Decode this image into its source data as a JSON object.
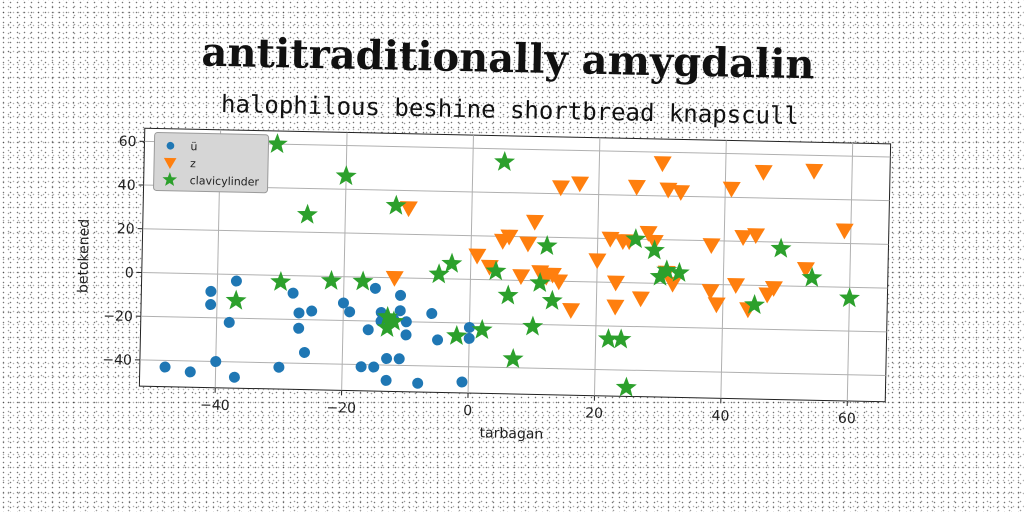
{
  "chart_data": {
    "type": "scatter",
    "title": "antitraditionally amygdalin",
    "subtitle": "halophilous beshine shortbread knapscull",
    "xlabel": "tarbagan",
    "ylabel": "betokened",
    "xlim": [
      -52,
      66
    ],
    "ylim": [
      -52,
      66
    ],
    "xticks": [
      -40,
      -20,
      0,
      20,
      40,
      60
    ],
    "yticks": [
      -40,
      -20,
      0,
      20,
      40,
      60
    ],
    "xtick_labels": [
      "−40",
      "−20",
      "0",
      "20",
      "40",
      "60"
    ],
    "ytick_labels": [
      "−40",
      "−20",
      "0",
      "20",
      "40",
      "60"
    ],
    "grid": true,
    "legend_position": "top-left",
    "series": [
      {
        "name": "ü",
        "marker": "circle",
        "color": "#1f77b4",
        "points": [
          [
            -48,
            -43
          ],
          [
            -44,
            -45
          ],
          [
            -41,
            -8
          ],
          [
            -41,
            -14
          ],
          [
            -40,
            -40
          ],
          [
            -38,
            -22
          ],
          [
            -37,
            -3
          ],
          [
            -37,
            -47
          ],
          [
            -30,
            -42
          ],
          [
            -28,
            -8
          ],
          [
            -27,
            -24
          ],
          [
            -27,
            -17
          ],
          [
            -26,
            -35
          ],
          [
            -25,
            -16
          ],
          [
            -20,
            -12
          ],
          [
            -19,
            -16
          ],
          [
            -17,
            -41
          ],
          [
            -16,
            -24
          ],
          [
            -15,
            -5
          ],
          [
            -15,
            -41
          ],
          [
            -14,
            -20
          ],
          [
            -14,
            -16
          ],
          [
            -13,
            -37
          ],
          [
            -13,
            -47
          ],
          [
            -12,
            -19
          ],
          [
            -11,
            -37
          ],
          [
            -11,
            -8
          ],
          [
            -10,
            -20
          ],
          [
            -10,
            -26
          ],
          [
            -11,
            -15
          ],
          [
            -8,
            -48
          ],
          [
            -6,
            -16
          ],
          [
            -5,
            -28
          ],
          [
            -1,
            -47
          ],
          [
            0,
            -22
          ],
          [
            0,
            -27
          ]
        ]
      },
      {
        "name": "z",
        "marker": "triangle-down",
        "color": "#ff7f0e",
        "points": [
          [
            -12,
            0
          ],
          [
            -10,
            32
          ],
          [
            1,
            11
          ],
          [
            3,
            6
          ],
          [
            5,
            18
          ],
          [
            6,
            20
          ],
          [
            8,
            2
          ],
          [
            9,
            17
          ],
          [
            10,
            27
          ],
          [
            11,
            4
          ],
          [
            12,
            2
          ],
          [
            13,
            3
          ],
          [
            14,
            43
          ],
          [
            14,
            0
          ],
          [
            16,
            -13
          ],
          [
            17,
            45
          ],
          [
            20,
            10
          ],
          [
            22,
            20
          ],
          [
            23,
            0
          ],
          [
            23,
            -11
          ],
          [
            24,
            19
          ],
          [
            25,
            19
          ],
          [
            26,
            44
          ],
          [
            27,
            -7
          ],
          [
            28,
            23
          ],
          [
            29,
            19
          ],
          [
            30,
            55
          ],
          [
            31,
            43
          ],
          [
            31,
            5
          ],
          [
            32,
            0
          ],
          [
            33,
            42
          ],
          [
            38,
            18
          ],
          [
            38,
            -3
          ],
          [
            39,
            -9
          ],
          [
            41,
            44
          ],
          [
            42,
            0
          ],
          [
            43,
            22
          ],
          [
            44,
            -11
          ],
          [
            45,
            23
          ],
          [
            46,
            52
          ],
          [
            47,
            -4
          ],
          [
            48,
            -1
          ],
          [
            53,
            8
          ],
          [
            54,
            53
          ],
          [
            59,
            26
          ]
        ]
      },
      {
        "name": "clavicylinder",
        "marker": "star",
        "color": "#2ca02c",
        "points": [
          [
            -37,
            -12
          ],
          [
            -31,
            60
          ],
          [
            -30,
            -3
          ],
          [
            -26,
            28
          ],
          [
            -22,
            -2
          ],
          [
            -20,
            46
          ],
          [
            -17,
            -2
          ],
          [
            -13,
            -23
          ],
          [
            -13,
            -18
          ],
          [
            -12,
            33
          ],
          [
            -12,
            -20
          ],
          [
            -5,
            2
          ],
          [
            -3,
            7
          ],
          [
            -2,
            -26
          ],
          [
            2,
            -23
          ],
          [
            4,
            4
          ],
          [
            5,
            54
          ],
          [
            6,
            -7
          ],
          [
            7,
            -36
          ],
          [
            10,
            -21
          ],
          [
            11,
            -1
          ],
          [
            12,
            16
          ],
          [
            13,
            -9
          ],
          [
            22,
            -26
          ],
          [
            24,
            -26
          ],
          [
            25,
            -48
          ],
          [
            26,
            20
          ],
          [
            29,
            15
          ],
          [
            30,
            3
          ],
          [
            31,
            6
          ],
          [
            33,
            5
          ],
          [
            45,
            -9
          ],
          [
            49,
            17
          ],
          [
            54,
            4
          ],
          [
            60,
            -5
          ]
        ]
      }
    ]
  }
}
